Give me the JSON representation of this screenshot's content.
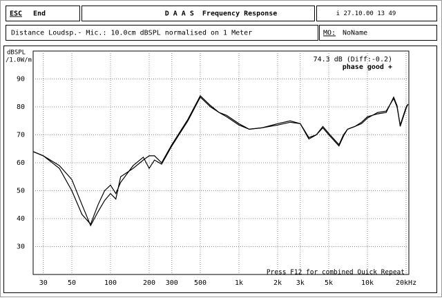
{
  "header": {
    "esc": "ESC",
    "end": "End",
    "title": "D A A S  Frequency Response",
    "date": "i 27.10.00 13 49",
    "info": "Distance Loudsp.- Mic.: 10.0cm dBSPL normalised on 1 Meter",
    "mo_label": "MO:",
    "mo_value": "NoName"
  },
  "chart_data": {
    "type": "line",
    "ylabel": "dBSPL",
    "ylabel2": "/1.0W/m",
    "annotations": [
      "74.3 dB (Diff:-0.2)",
      "phase good +",
      "Press F12 for combined Quick Repeat"
    ],
    "log_x": true,
    "grid": true,
    "xlim": [
      25,
      21000
    ],
    "ylim": [
      20,
      100
    ],
    "xticks": [
      30,
      50,
      100,
      200,
      300,
      500,
      {
        "value": 1000,
        "label": "1k"
      },
      {
        "value": 2000,
        "label": "2k"
      },
      {
        "value": 3000,
        "label": "3k"
      },
      {
        "value": 5000,
        "label": "5k"
      },
      {
        "value": 10000,
        "label": "10k"
      },
      {
        "value": 20000,
        "label": "20kHz"
      }
    ],
    "yticks": [
      30,
      40,
      50,
      60,
      70,
      80,
      90
    ],
    "x": [
      25,
      30,
      40,
      50,
      60,
      70,
      80,
      90,
      100,
      110,
      120,
      150,
      180,
      200,
      220,
      250,
      300,
      400,
      500,
      600,
      700,
      800,
      1000,
      1200,
      1500,
      2000,
      2500,
      3000,
      3500,
      4000,
      4500,
      5000,
      6000,
      6500,
      7000,
      8000,
      9000,
      10000,
      12000,
      14000,
      16000,
      17000,
      18000,
      20000,
      20700
    ],
    "series": [
      {
        "color": "#000000",
        "values": [
          64,
          62.5,
          58,
          50,
          41.5,
          38,
          45,
          50,
          52,
          49,
          53,
          59,
          62,
          58,
          61,
          59.5,
          66,
          75,
          83.5,
          80,
          78,
          77,
          74,
          72,
          72.5,
          74,
          75,
          74,
          69,
          70,
          73,
          70.5,
          66.5,
          70,
          72,
          73,
          74,
          76,
          78,
          78.5,
          83,
          80,
          73.5,
          80,
          81
        ]
      },
      {
        "color": "#000000",
        "values": [
          64,
          62.5,
          59,
          54,
          45,
          37.5,
          42.5,
          46.5,
          49,
          47,
          55,
          58,
          61,
          62.5,
          62.5,
          60,
          66.5,
          75.5,
          84,
          80.5,
          78,
          76.5,
          73.5,
          72,
          72.5,
          73.5,
          74.5,
          74,
          68.5,
          70,
          72.5,
          70,
          66,
          69.5,
          72,
          73,
          74.5,
          76.5,
          77.5,
          78,
          83.5,
          80.5,
          73,
          79.5,
          81
        ]
      }
    ]
  }
}
